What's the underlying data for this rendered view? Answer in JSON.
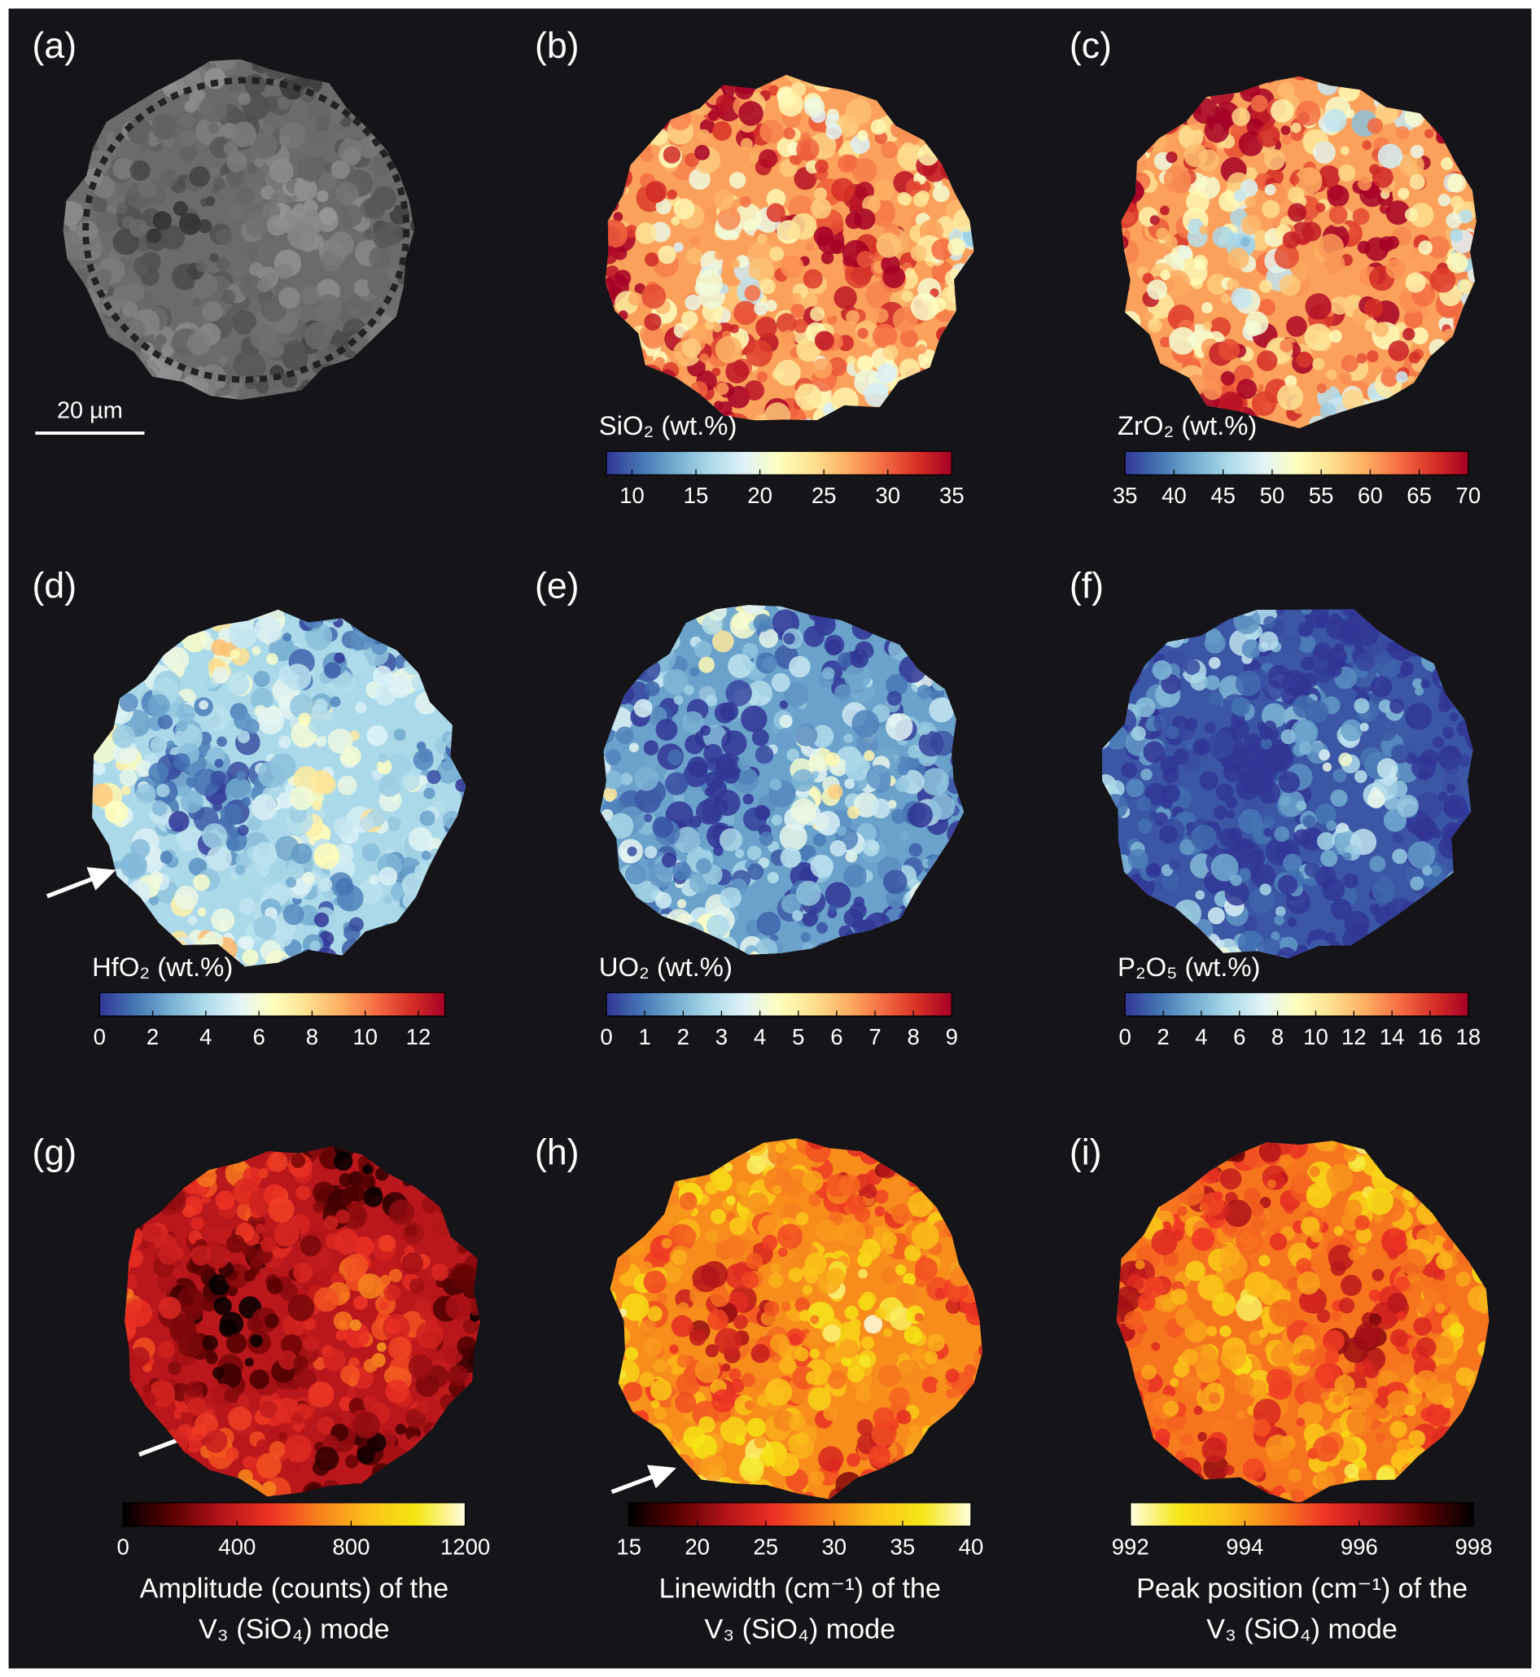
{
  "panels": [
    {
      "label": "(a)",
      "scale_bar": "20 µm"
    },
    {
      "label": "(b)",
      "colorbar": {
        "title": "SiO₂ (wt.%)",
        "range": [
          8,
          35
        ],
        "ticks": [
          10,
          15,
          20,
          25,
          30,
          35
        ],
        "colormap": [
          "#313695",
          "#4575b4",
          "#74add1",
          "#abd9e9",
          "#e0f3f8",
          "#ffffbf",
          "#fee090",
          "#fdae61",
          "#f46d43",
          "#d73027",
          "#a50026"
        ]
      }
    },
    {
      "label": "(c)",
      "colorbar": {
        "title": "ZrO₂ (wt.%)",
        "range": [
          35,
          70
        ],
        "ticks": [
          35,
          40,
          45,
          50,
          55,
          60,
          65,
          70
        ],
        "colormap": [
          "#313695",
          "#4575b4",
          "#74add1",
          "#abd9e9",
          "#e0f3f8",
          "#ffffbf",
          "#fee090",
          "#fdae61",
          "#f46d43",
          "#d73027",
          "#a50026"
        ]
      }
    },
    {
      "label": "(d)",
      "colorbar": {
        "title": "HfO₂ (wt.%)",
        "range": [
          0,
          13
        ],
        "ticks": [
          0,
          2,
          4,
          6,
          8,
          10,
          12
        ],
        "colormap": [
          "#313695",
          "#4575b4",
          "#74add1",
          "#abd9e9",
          "#e0f3f8",
          "#ffffbf",
          "#fee090",
          "#fdae61",
          "#f46d43",
          "#d73027",
          "#a50026"
        ]
      }
    },
    {
      "label": "(e)",
      "colorbar": {
        "title": "UO₂ (wt.%)",
        "range": [
          0,
          9
        ],
        "ticks": [
          0,
          1,
          2,
          3,
          4,
          5,
          6,
          7,
          8,
          9
        ],
        "colormap": [
          "#313695",
          "#4575b4",
          "#74add1",
          "#abd9e9",
          "#e0f3f8",
          "#ffffbf",
          "#fee090",
          "#fdae61",
          "#f46d43",
          "#d73027",
          "#a50026"
        ]
      }
    },
    {
      "label": "(f)",
      "colorbar": {
        "title": "P₂O₅ (wt.%)",
        "range": [
          0,
          18
        ],
        "ticks": [
          0,
          2,
          4,
          6,
          8,
          10,
          12,
          14,
          16,
          18
        ],
        "colormap": [
          "#313695",
          "#4575b4",
          "#74add1",
          "#abd9e9",
          "#e0f3f8",
          "#ffffbf",
          "#fee090",
          "#fdae61",
          "#f46d43",
          "#d73027",
          "#a50026"
        ]
      }
    },
    {
      "label": "(g)",
      "colorbar": {
        "caption": [
          "Amplitude (counts) of the",
          "V₃ (SiO₄) mode"
        ],
        "range": [
          0,
          1200
        ],
        "ticks": [
          0,
          400,
          800,
          1200
        ],
        "colormap": [
          "#000000",
          "#5a0000",
          "#b3141a",
          "#ee3224",
          "#f7801d",
          "#fbc01a",
          "#f5e614",
          "#fffde0"
        ]
      }
    },
    {
      "label": "(h)",
      "colorbar": {
        "caption": [
          "Linewidth (cm⁻¹) of the",
          "V₃ (SiO₄) mode"
        ],
        "range": [
          15,
          40
        ],
        "ticks": [
          15,
          20,
          25,
          30,
          35,
          40
        ],
        "colormap": [
          "#000000",
          "#5a0000",
          "#b3141a",
          "#ee3224",
          "#f7801d",
          "#fbc01a",
          "#f5e614",
          "#fffde0"
        ]
      }
    },
    {
      "label": "(i)",
      "colorbar": {
        "caption": [
          "Peak position (cm⁻¹) of the",
          "V₃ (SiO₄) mode"
        ],
        "range": [
          992,
          998
        ],
        "ticks": [
          992,
          994,
          996,
          998
        ],
        "colormap": [
          "#fffde0",
          "#f5e614",
          "#fbc01a",
          "#f7801d",
          "#ee3224",
          "#b3141a",
          "#5a0000",
          "#000000"
        ]
      }
    }
  ]
}
